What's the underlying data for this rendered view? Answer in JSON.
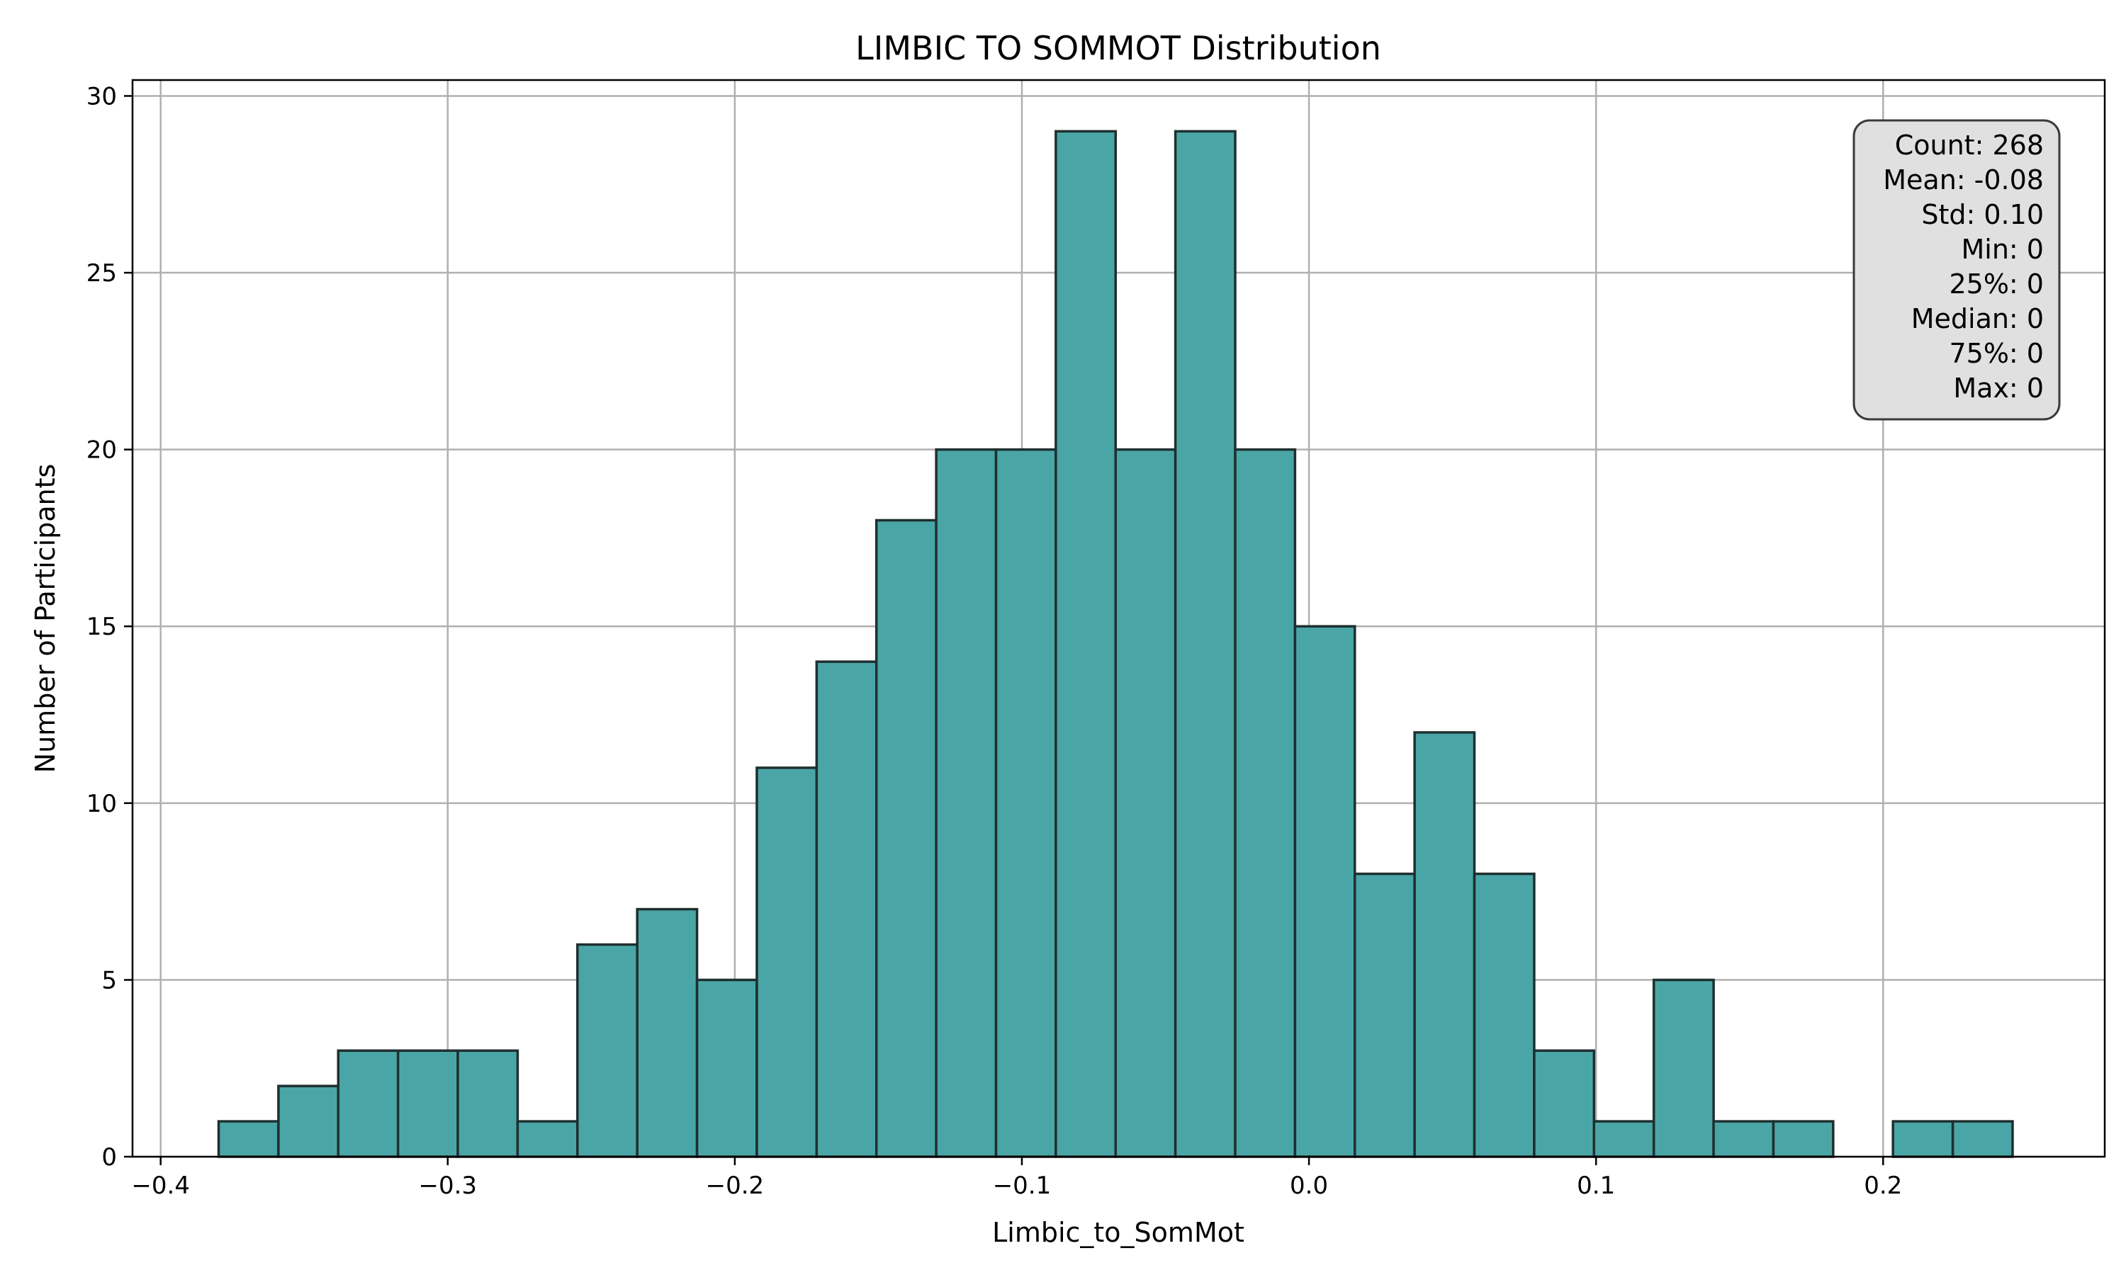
{
  "chart_data": {
    "type": "bar",
    "title": "LIMBIC TO SOMMOT Distribution",
    "xlabel": "Limbic_to_SomMot",
    "ylabel": "Number of Participants",
    "xlim": [
      -0.4098,
      0.2772
    ],
    "ylim": [
      0,
      30.45
    ],
    "xticks": [
      -0.4,
      -0.3,
      -0.2,
      -0.1,
      0.0,
      0.1,
      0.2
    ],
    "xtick_labels": [
      "−0.4",
      "−0.3",
      "−0.2",
      "−0.1",
      "0.0",
      "0.1",
      "0.2"
    ],
    "yticks": [
      0,
      5,
      10,
      15,
      20,
      25,
      30
    ],
    "ytick_labels": [
      "0",
      "5",
      "10",
      "15",
      "20",
      "25",
      "30"
    ],
    "bin_start": -0.3798,
    "bin_width": 0.02083,
    "counts": [
      1,
      2,
      3,
      3,
      3,
      1,
      6,
      7,
      5,
      11,
      14,
      18,
      20,
      20,
      29,
      20,
      29,
      20,
      15,
      8,
      12,
      8,
      3,
      1,
      5,
      1,
      1,
      0,
      1,
      1
    ],
    "grid": true,
    "bar_color": "#4aa6a6",
    "edge_color": "#1f2f2f",
    "stats_box": {
      "position": "top-right",
      "lines": [
        "Count: 268",
        "Mean: -0.08",
        "Std: 0.10",
        "Min: 0",
        "25%: 0",
        "Median: 0",
        "75%: 0",
        "Max: 0"
      ]
    }
  }
}
